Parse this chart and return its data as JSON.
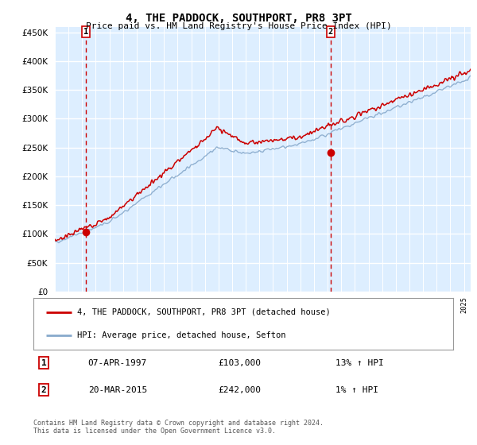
{
  "title": "4, THE PADDOCK, SOUTHPORT, PR8 3PT",
  "subtitle": "Price paid vs. HM Land Registry's House Price Index (HPI)",
  "ylabel_values": [
    0,
    50000,
    100000,
    150000,
    200000,
    250000,
    300000,
    350000,
    400000,
    450000
  ],
  "ylim": [
    0,
    460000
  ],
  "xlim_start": 1995.0,
  "xlim_end": 2025.5,
  "transaction1": {
    "date_num": 1997.27,
    "price": 103000,
    "label": "1",
    "date_str": "07-APR-1997",
    "pct": "13%"
  },
  "transaction2": {
    "date_num": 2015.22,
    "price": 242000,
    "label": "2",
    "date_str": "20-MAR-2015",
    "pct": "1%"
  },
  "legend_line1": "4, THE PADDOCK, SOUTHPORT, PR8 3PT (detached house)",
  "legend_line2": "HPI: Average price, detached house, Sefton",
  "table_row1": [
    "1",
    "07-APR-1997",
    "£103,000",
    "13% ↑ HPI"
  ],
  "table_row2": [
    "2",
    "20-MAR-2015",
    "£242,000",
    "1% ↑ HPI"
  ],
  "footer": "Contains HM Land Registry data © Crown copyright and database right 2024.\nThis data is licensed under the Open Government Licence v3.0.",
  "line_color_red": "#cc0000",
  "line_color_blue": "#88aacc",
  "bg_color": "#ddeeff",
  "vline_color": "#cc0000",
  "marker_color": "#cc0000",
  "box_color": "#cc0000"
}
